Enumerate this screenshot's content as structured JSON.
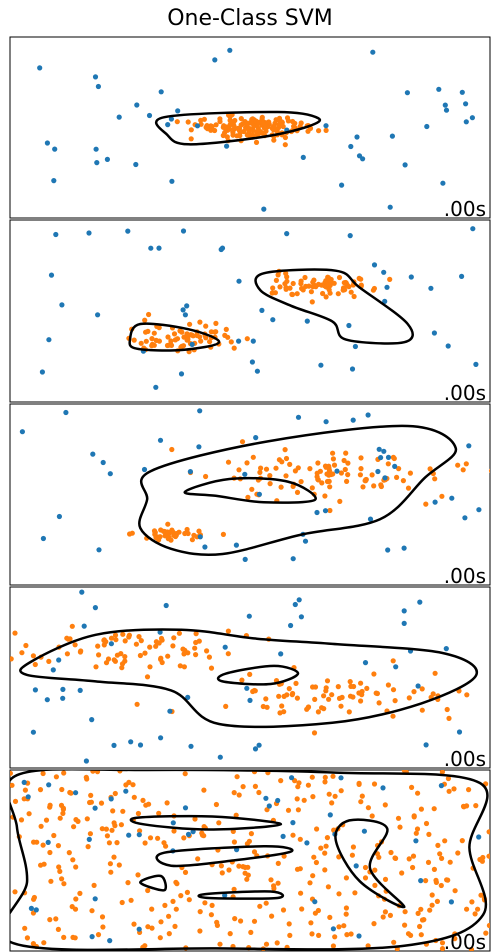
{
  "figure": {
    "title": "One-Class SVM"
  },
  "colors": {
    "inlier": "#ff7f0e",
    "outlier": "#1f77b4",
    "decision_boundary": "#000000"
  },
  "chart_data": [
    {
      "type": "scatter",
      "panel": 1,
      "time_label": ".00s",
      "xlim": [
        -7,
        7
      ],
      "ylim": [
        -7,
        7
      ],
      "grid": false,
      "inliers": {
        "clusters": [
          {
            "center": [
              0,
              0
            ],
            "spread": 0.9,
            "count": 150
          }
        ]
      },
      "outliers": {
        "count": 45
      },
      "contours": [
        [
          [
            -2.5,
            0.8
          ],
          [
            0.8,
            1.2
          ],
          [
            2.0,
            0.7
          ],
          [
            1.6,
            0
          ],
          [
            0.2,
            -0.8
          ],
          [
            -1.8,
            -1.3
          ],
          [
            -2.4,
            -0.6
          ]
        ]
      ]
    },
    {
      "type": "scatter",
      "panel": 2,
      "time_label": ".00s",
      "xlim": [
        -7,
        7
      ],
      "ylim": [
        -7,
        7
      ],
      "grid": false,
      "inliers": {
        "clusters": [
          {
            "center": [
              -2,
              -2
            ],
            "spread": 0.9,
            "count": 75
          },
          {
            "center": [
              2,
              2
            ],
            "spread": 0.9,
            "count": 75
          }
        ]
      },
      "outliers": {
        "count": 45
      },
      "contours": [
        [
          [
            -3.2,
            -1.0
          ],
          [
            -1.8,
            -1.4
          ],
          [
            -0.9,
            -2.4
          ],
          [
            -2.0,
            -3.0
          ],
          [
            -3.3,
            -2.9
          ],
          [
            -3.5,
            -2.2
          ]
        ],
        [
          [
            0.4,
            2.9
          ],
          [
            2.5,
            3.1
          ],
          [
            3.2,
            1.8
          ],
          [
            4.6,
            -1.0
          ],
          [
            4.5,
            -2.4
          ],
          [
            2.8,
            -2.2
          ],
          [
            2.4,
            -0.8
          ],
          [
            1.2,
            0.4
          ],
          [
            0.3,
            1.6
          ]
        ]
      ]
    },
    {
      "type": "scatter",
      "panel": 3,
      "time_label": ".00s",
      "xlim": [
        -7,
        7
      ],
      "ylim": [
        -7,
        7
      ],
      "grid": false,
      "inliers": {
        "clusters": [
          {
            "center": [
              -2.3,
              -3.1
            ],
            "spread": 0.5,
            "count": 45
          },
          {
            "center": [
              2.4,
              1.5
            ],
            "spread": 2.0,
            "count": 105
          }
        ]
      },
      "outliers": {
        "count": 45
      },
      "contours": [
        [
          [
            -2.9,
            1.8
          ],
          [
            0.5,
            4.1
          ],
          [
            4.6,
            5.3
          ],
          [
            6.0,
            3.6
          ],
          [
            5.1,
            1.3
          ],
          [
            3.8,
            -1.9
          ],
          [
            1.5,
            -3.1
          ],
          [
            -0.8,
            -4.6
          ],
          [
            -2.3,
            -4.2
          ],
          [
            -3.2,
            -2.6
          ],
          [
            -3.0,
            -0.4
          ]
        ],
        [
          [
            -1.9,
            0.2
          ],
          [
            -0.6,
            1.2
          ],
          [
            1.1,
            1.0
          ],
          [
            1.9,
            -0.4
          ],
          [
            0.4,
            -0.6
          ],
          [
            -1.0,
            -0.1
          ]
        ]
      ]
    },
    {
      "type": "scatter",
      "panel": 4,
      "time_label": ".00s",
      "xlim": [
        -7,
        7
      ],
      "ylim": [
        -7,
        7
      ],
      "grid": false,
      "inliers": {
        "clusters": [
          {
            "center": [
              -3.4,
              2.0
            ],
            "spread": 1.6,
            "count": 80
          },
          {
            "center": [
              2.6,
              -1.6
            ],
            "spread": 1.8,
            "count": 80
          }
        ]
      },
      "outliers": {
        "count": 45
      },
      "contours": [
        [
          [
            -6.4,
            1.2
          ],
          [
            -4.5,
            3.3
          ],
          [
            -2.0,
            3.7
          ],
          [
            0.2,
            3.0
          ],
          [
            2.4,
            2.6
          ],
          [
            5.6,
            1.9
          ],
          [
            6.6,
            0.2
          ],
          [
            5.0,
            -2.0
          ],
          [
            2.4,
            -3.5
          ],
          [
            -0.9,
            -3.6
          ],
          [
            -2.3,
            -1.0
          ],
          [
            -4.5,
            -0.3
          ],
          [
            -6.5,
            0.2
          ]
        ],
        [
          [
            -0.7,
            0.3
          ],
          [
            0.7,
            0.9
          ],
          [
            1.4,
            0.3
          ],
          [
            0.6,
            -0.5
          ],
          [
            -0.8,
            -0.3
          ]
        ]
      ]
    },
    {
      "type": "scatter",
      "panel": 5,
      "time_label": ".00s",
      "xlim": [
        -7,
        7
      ],
      "ylim": [
        -7,
        7
      ],
      "grid": false,
      "inliers": {
        "clusters": [
          {
            "center": [
              0,
              0
            ],
            "spread": "uniform",
            "count": 400
          }
        ]
      },
      "outliers": {
        "count": 45
      },
      "contours": [
        [
          [
            -6.8,
            6.6
          ],
          [
            -3.0,
            7.0
          ],
          [
            2.5,
            6.8
          ],
          [
            6.7,
            6.0
          ],
          [
            6.4,
            1.0
          ],
          [
            6.8,
            -4.2
          ],
          [
            4.5,
            -6.6
          ],
          [
            -1.0,
            -6.8
          ],
          [
            -6.9,
            -6.4
          ],
          [
            -6.5,
            -1.6
          ],
          [
            -6.8,
            2.6
          ]
        ],
        [
          [
            -3.3,
            3.3
          ],
          [
            -1.1,
            3.4
          ],
          [
            0.9,
            2.8
          ],
          [
            -1.2,
            2.4
          ],
          [
            -3.1,
            2.8
          ]
        ],
        [
          [
            -2.5,
            0.6
          ],
          [
            0.4,
            1.1
          ],
          [
            1.2,
            0.7
          ],
          [
            -0.5,
            0.0
          ],
          [
            -2.3,
            -0.4
          ]
        ],
        [
          [
            -1.3,
            -2.6
          ],
          [
            0.6,
            -2.4
          ],
          [
            0.8,
            -2.9
          ],
          [
            -1.2,
            -2.9
          ]
        ],
        [
          [
            -3.2,
            -1.7
          ],
          [
            -2.6,
            -1.2
          ],
          [
            -2.5,
            -2.3
          ]
        ],
        [
          [
            2.9,
            3.1
          ],
          [
            4.0,
            2.5
          ],
          [
            3.5,
            -0.6
          ],
          [
            4.5,
            -3.6
          ],
          [
            3.2,
            -1.6
          ],
          [
            2.5,
            1.6
          ]
        ]
      ]
    }
  ]
}
